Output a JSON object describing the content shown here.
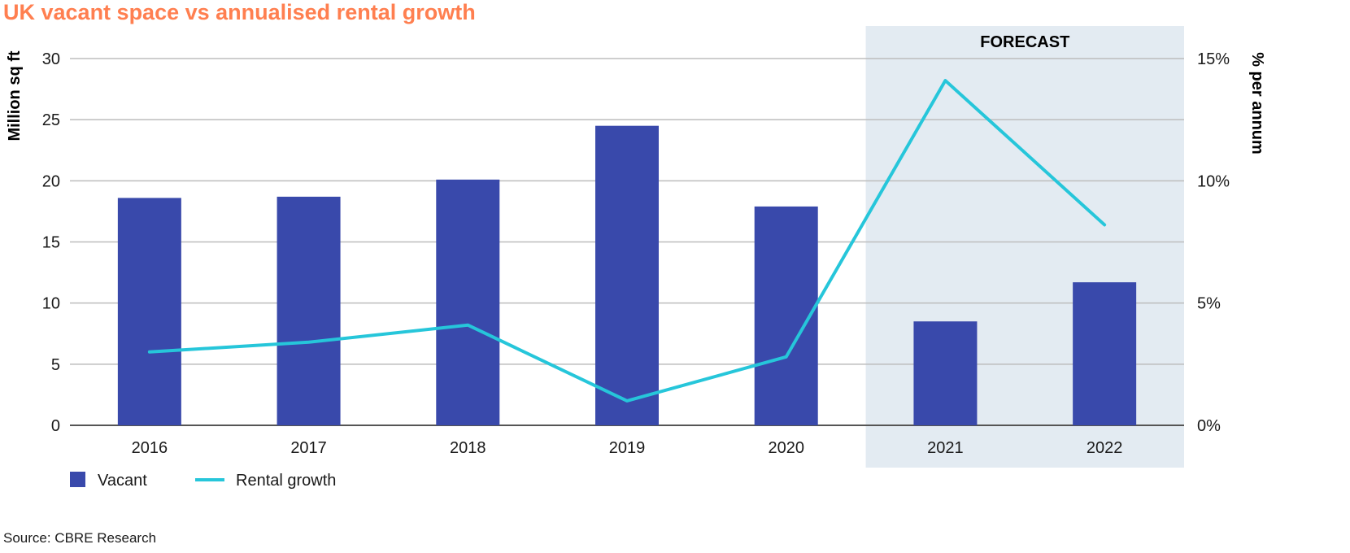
{
  "chart_data": {
    "type": "bar",
    "title": "UK vacant space vs annualised rental growth",
    "categories": [
      "2016",
      "2017",
      "2018",
      "2019",
      "2020",
      "2021",
      "2022"
    ],
    "series": [
      {
        "name": "Vacant",
        "type": "bar",
        "axis": "left",
        "values": [
          18.6,
          18.7,
          20.1,
          24.5,
          17.9,
          8.5,
          11.7
        ]
      },
      {
        "name": "Rental growth",
        "type": "line",
        "axis": "right",
        "values": [
          3.0,
          3.4,
          4.1,
          1.0,
          2.8,
          14.1,
          8.2
        ]
      }
    ],
    "ylabel": "Million sq ft",
    "ylim": [
      0,
      30
    ],
    "yticks": [
      "0",
      "5",
      "10",
      "15",
      "20",
      "25",
      "30"
    ],
    "y2label": "% per annum",
    "y2lim": [
      0,
      15
    ],
    "y2ticks": [
      "0%",
      "5%",
      "10%",
      "15%"
    ],
    "forecast_label": "FORECAST",
    "forecast_categories": [
      "2021",
      "2022"
    ],
    "grid": true,
    "legend_position": "bottom-left",
    "source": "Source: CBRE Research"
  },
  "colors": {
    "bar": "#3949ab",
    "line": "#26c6da",
    "title": "#ff7f50",
    "forecast_bg": "#e3ebf2",
    "grid": "#bdbdbd"
  }
}
